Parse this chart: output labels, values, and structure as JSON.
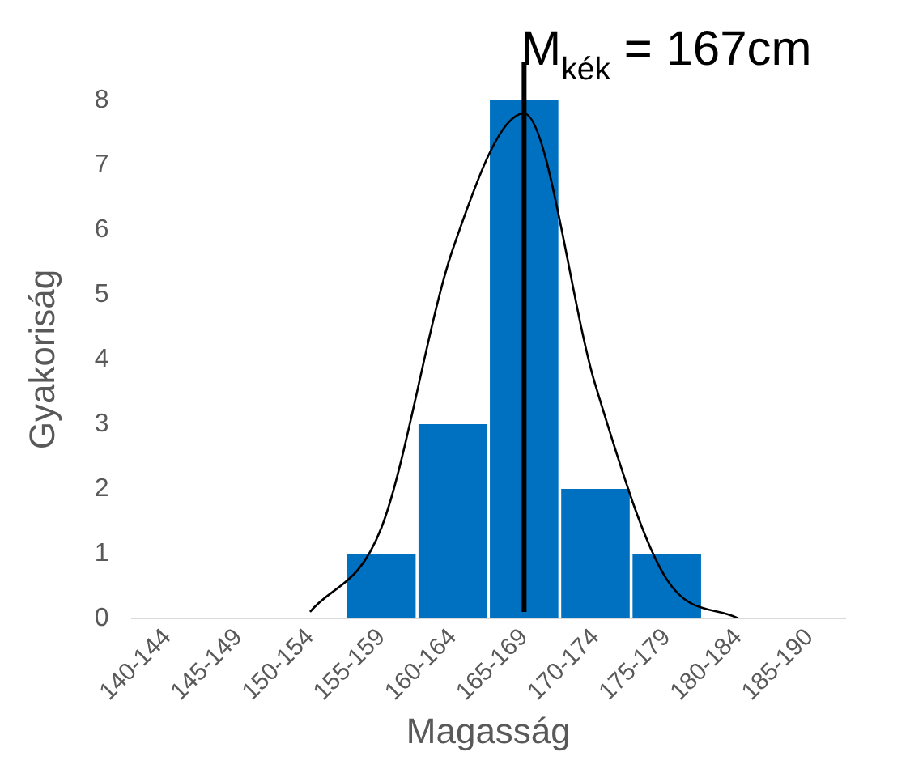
{
  "chart_data": {
    "type": "bar",
    "xlabel": "Magasság",
    "ylabel": "Gyakoriság",
    "categories": [
      "140-144",
      "145-149",
      "150-154",
      "155-159",
      "160-164",
      "165-169",
      "170-174",
      "175-179",
      "180-184",
      "185-190"
    ],
    "series": [
      {
        "color": "#0070c0",
        "values": [
          0,
          0,
          0,
          1,
          3,
          8,
          2,
          1,
          0,
          0
        ]
      },
      {
        "type": "line",
        "color": "#000000",
        "marker": "none",
        "values": [
          null,
          null,
          0.1,
          1.4,
          5.7,
          7.8,
          3.6,
          0.6,
          0.0,
          null
        ]
      }
    ],
    "ylim": [
      0,
      8
    ],
    "yticks": [
      0,
      1,
      2,
      3,
      4,
      5,
      6,
      7,
      8
    ],
    "grid": false,
    "legend": false,
    "ref_lines": [
      {
        "axis": "x",
        "value": "165-169",
        "label": "M$_{kék}$ = 167cm",
        "color": "#000000"
      }
    ]
  }
}
